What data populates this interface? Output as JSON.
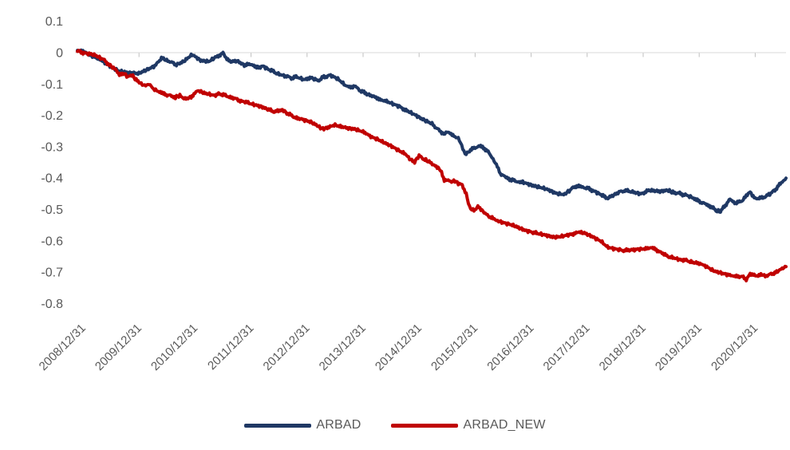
{
  "chart_data": {
    "type": "line",
    "title": "",
    "xlabel": "",
    "ylabel": "",
    "x_tick_labels": [
      "2008/12/31",
      "2009/12/31",
      "2010/12/31",
      "2011/12/31",
      "2012/12/31",
      "2013/12/31",
      "2014/12/31",
      "2015/12/31",
      "2016/12/31",
      "2017/12/31",
      "2018/12/31",
      "2019/12/31",
      "2020/12/31"
    ],
    "y_tick_labels": [
      "0.1",
      "0",
      "-0.1",
      "-0.2",
      "-0.3",
      "-0.4",
      "-0.5",
      "-0.6",
      "-0.7",
      "-0.8"
    ],
    "y_tick_values": [
      0.1,
      0,
      -0.1,
      -0.2,
      -0.3,
      -0.4,
      -0.5,
      -0.6,
      -0.7,
      -0.8
    ],
    "ylim": [
      -0.8,
      0.1
    ],
    "x_range_years_from_first_label": [
      -0.1,
      12.55
    ],
    "grid": "off",
    "zero_axis_line": true,
    "legend_position": "bottom-center",
    "series": [
      {
        "name": "ARBAD",
        "color": "#1f3864",
        "points_t_years_value": [
          [
            -0.1,
            0.008
          ],
          [
            0,
            0.003
          ],
          [
            0.15,
            -0.01
          ],
          [
            0.3,
            -0.02
          ],
          [
            0.5,
            -0.045
          ],
          [
            0.65,
            -0.058
          ],
          [
            0.8,
            -0.065
          ],
          [
            1.0,
            -0.066
          ],
          [
            1.15,
            -0.055
          ],
          [
            1.3,
            -0.04
          ],
          [
            1.4,
            -0.016
          ],
          [
            1.55,
            -0.028
          ],
          [
            1.65,
            -0.038
          ],
          [
            1.8,
            -0.028
          ],
          [
            1.95,
            -0.007
          ],
          [
            2.1,
            -0.024
          ],
          [
            2.25,
            -0.028
          ],
          [
            2.4,
            -0.012
          ],
          [
            2.5,
            -0.002
          ],
          [
            2.62,
            -0.03
          ],
          [
            2.75,
            -0.027
          ],
          [
            2.88,
            -0.04
          ],
          [
            3.0,
            -0.036
          ],
          [
            3.1,
            -0.048
          ],
          [
            3.2,
            -0.043
          ],
          [
            3.35,
            -0.056
          ],
          [
            3.45,
            -0.065
          ],
          [
            3.6,
            -0.073
          ],
          [
            3.72,
            -0.081
          ],
          [
            3.82,
            -0.077
          ],
          [
            3.95,
            -0.086
          ],
          [
            4.07,
            -0.08
          ],
          [
            4.2,
            -0.09
          ],
          [
            4.3,
            -0.077
          ],
          [
            4.42,
            -0.073
          ],
          [
            4.55,
            -0.085
          ],
          [
            4.68,
            -0.104
          ],
          [
            4.78,
            -0.112
          ],
          [
            4.85,
            -0.106
          ],
          [
            4.95,
            -0.121
          ],
          [
            5.05,
            -0.13
          ],
          [
            5.18,
            -0.138
          ],
          [
            5.3,
            -0.15
          ],
          [
            5.42,
            -0.155
          ],
          [
            5.55,
            -0.165
          ],
          [
            5.68,
            -0.175
          ],
          [
            5.8,
            -0.188
          ],
          [
            5.95,
            -0.2
          ],
          [
            6.1,
            -0.215
          ],
          [
            6.25,
            -0.23
          ],
          [
            6.35,
            -0.247
          ],
          [
            6.44,
            -0.26
          ],
          [
            6.52,
            -0.252
          ],
          [
            6.62,
            -0.266
          ],
          [
            6.7,
            -0.273
          ],
          [
            6.76,
            -0.295
          ],
          [
            6.82,
            -0.325
          ],
          [
            6.9,
            -0.313
          ],
          [
            7.0,
            -0.302
          ],
          [
            7.1,
            -0.298
          ],
          [
            7.2,
            -0.31
          ],
          [
            7.3,
            -0.333
          ],
          [
            7.38,
            -0.358
          ],
          [
            7.45,
            -0.385
          ],
          [
            7.55,
            -0.398
          ],
          [
            7.65,
            -0.406
          ],
          [
            7.75,
            -0.411
          ],
          [
            7.85,
            -0.414
          ],
          [
            8.0,
            -0.421
          ],
          [
            8.15,
            -0.429
          ],
          [
            8.3,
            -0.438
          ],
          [
            8.45,
            -0.448
          ],
          [
            8.6,
            -0.452
          ],
          [
            8.68,
            -0.44
          ],
          [
            8.8,
            -0.425
          ],
          [
            8.9,
            -0.428
          ],
          [
            9.0,
            -0.432
          ],
          [
            9.1,
            -0.44
          ],
          [
            9.25,
            -0.452
          ],
          [
            9.35,
            -0.465
          ],
          [
            9.46,
            -0.455
          ],
          [
            9.57,
            -0.445
          ],
          [
            9.67,
            -0.44
          ],
          [
            9.81,
            -0.443
          ],
          [
            9.96,
            -0.45
          ],
          [
            10.1,
            -0.44
          ],
          [
            10.3,
            -0.442
          ],
          [
            10.45,
            -0.44
          ],
          [
            10.53,
            -0.445
          ],
          [
            10.67,
            -0.45
          ],
          [
            10.77,
            -0.455
          ],
          [
            10.9,
            -0.465
          ],
          [
            11.0,
            -0.474
          ],
          [
            11.1,
            -0.482
          ],
          [
            11.2,
            -0.49
          ],
          [
            11.3,
            -0.503
          ],
          [
            11.38,
            -0.508
          ],
          [
            11.45,
            -0.49
          ],
          [
            11.55,
            -0.468
          ],
          [
            11.65,
            -0.48
          ],
          [
            11.77,
            -0.472
          ],
          [
            11.84,
            -0.455
          ],
          [
            11.91,
            -0.446
          ],
          [
            12.0,
            -0.465
          ],
          [
            12.12,
            -0.463
          ],
          [
            12.26,
            -0.452
          ],
          [
            12.35,
            -0.438
          ],
          [
            12.45,
            -0.418
          ],
          [
            12.55,
            -0.4
          ]
        ]
      },
      {
        "name": "ARBAD_NEW",
        "color": "#c00000",
        "points_t_years_value": [
          [
            -0.1,
            0.005
          ],
          [
            0,
            0.0
          ],
          [
            0.2,
            -0.008
          ],
          [
            0.35,
            -0.02
          ],
          [
            0.45,
            -0.036
          ],
          [
            0.6,
            -0.055
          ],
          [
            0.65,
            -0.073
          ],
          [
            0.72,
            -0.065
          ],
          [
            0.8,
            -0.078
          ],
          [
            0.87,
            -0.072
          ],
          [
            0.95,
            -0.086
          ],
          [
            1.02,
            -0.096
          ],
          [
            1.1,
            -0.106
          ],
          [
            1.18,
            -0.1
          ],
          [
            1.26,
            -0.116
          ],
          [
            1.35,
            -0.124
          ],
          [
            1.45,
            -0.132
          ],
          [
            1.55,
            -0.137
          ],
          [
            1.65,
            -0.143
          ],
          [
            1.73,
            -0.136
          ],
          [
            1.82,
            -0.147
          ],
          [
            1.93,
            -0.142
          ],
          [
            2.05,
            -0.12
          ],
          [
            2.2,
            -0.13
          ],
          [
            2.35,
            -0.138
          ],
          [
            2.42,
            -0.13
          ],
          [
            2.56,
            -0.138
          ],
          [
            2.7,
            -0.146
          ],
          [
            2.84,
            -0.155
          ],
          [
            3.0,
            -0.163
          ],
          [
            3.13,
            -0.17
          ],
          [
            3.28,
            -0.18
          ],
          [
            3.42,
            -0.188
          ],
          [
            3.56,
            -0.183
          ],
          [
            3.64,
            -0.193
          ],
          [
            3.78,
            -0.206
          ],
          [
            3.92,
            -0.214
          ],
          [
            4.05,
            -0.221
          ],
          [
            4.2,
            -0.234
          ],
          [
            4.28,
            -0.244
          ],
          [
            4.36,
            -0.238
          ],
          [
            4.5,
            -0.231
          ],
          [
            4.56,
            -0.234
          ],
          [
            4.7,
            -0.24
          ],
          [
            4.85,
            -0.245
          ],
          [
            5.0,
            -0.252
          ],
          [
            5.12,
            -0.265
          ],
          [
            5.27,
            -0.277
          ],
          [
            5.4,
            -0.29
          ],
          [
            5.55,
            -0.303
          ],
          [
            5.7,
            -0.317
          ],
          [
            5.77,
            -0.325
          ],
          [
            5.85,
            -0.342
          ],
          [
            5.92,
            -0.347
          ],
          [
            6.0,
            -0.33
          ],
          [
            6.12,
            -0.342
          ],
          [
            6.2,
            -0.35
          ],
          [
            6.27,
            -0.359
          ],
          [
            6.34,
            -0.367
          ],
          [
            6.4,
            -0.379
          ],
          [
            6.45,
            -0.41
          ],
          [
            6.52,
            -0.405
          ],
          [
            6.56,
            -0.413
          ],
          [
            6.62,
            -0.408
          ],
          [
            6.7,
            -0.417
          ],
          [
            6.77,
            -0.423
          ],
          [
            6.84,
            -0.45
          ],
          [
            6.9,
            -0.494
          ],
          [
            6.98,
            -0.503
          ],
          [
            7.05,
            -0.49
          ],
          [
            7.12,
            -0.503
          ],
          [
            7.2,
            -0.515
          ],
          [
            7.27,
            -0.524
          ],
          [
            7.34,
            -0.532
          ],
          [
            7.42,
            -0.537
          ],
          [
            7.55,
            -0.545
          ],
          [
            7.7,
            -0.553
          ],
          [
            7.83,
            -0.562
          ],
          [
            7.98,
            -0.57
          ],
          [
            8.12,
            -0.578
          ],
          [
            8.27,
            -0.583
          ],
          [
            8.4,
            -0.588
          ],
          [
            8.55,
            -0.585
          ],
          [
            8.7,
            -0.581
          ],
          [
            8.84,
            -0.572
          ],
          [
            8.97,
            -0.576
          ],
          [
            9.1,
            -0.586
          ],
          [
            9.25,
            -0.602
          ],
          [
            9.36,
            -0.62
          ],
          [
            9.47,
            -0.625
          ],
          [
            9.6,
            -0.63
          ],
          [
            9.72,
            -0.631
          ],
          [
            9.88,
            -0.626
          ],
          [
            10.03,
            -0.625
          ],
          [
            10.15,
            -0.622
          ],
          [
            10.25,
            -0.63
          ],
          [
            10.39,
            -0.645
          ],
          [
            10.53,
            -0.655
          ],
          [
            10.68,
            -0.66
          ],
          [
            10.82,
            -0.665
          ],
          [
            11.0,
            -0.672
          ],
          [
            11.1,
            -0.68
          ],
          [
            11.25,
            -0.694
          ],
          [
            11.42,
            -0.705
          ],
          [
            11.53,
            -0.71
          ],
          [
            11.63,
            -0.712
          ],
          [
            11.77,
            -0.715
          ],
          [
            11.84,
            -0.723
          ],
          [
            11.91,
            -0.705
          ],
          [
            12.0,
            -0.712
          ],
          [
            12.12,
            -0.708
          ],
          [
            12.2,
            -0.712
          ],
          [
            12.3,
            -0.705
          ],
          [
            12.4,
            -0.698
          ],
          [
            12.48,
            -0.688
          ],
          [
            12.55,
            -0.683
          ]
        ]
      }
    ]
  },
  "legend": {
    "items": [
      {
        "label": "ARBAD",
        "color": "#1f3864"
      },
      {
        "label": "ARBAD_NEW",
        "color": "#c00000"
      }
    ]
  },
  "colors": {
    "background": "#ffffff",
    "axis_line": "#d9d9d9",
    "tick_mark": "#bfbfbf",
    "tick_label": "#595959"
  }
}
